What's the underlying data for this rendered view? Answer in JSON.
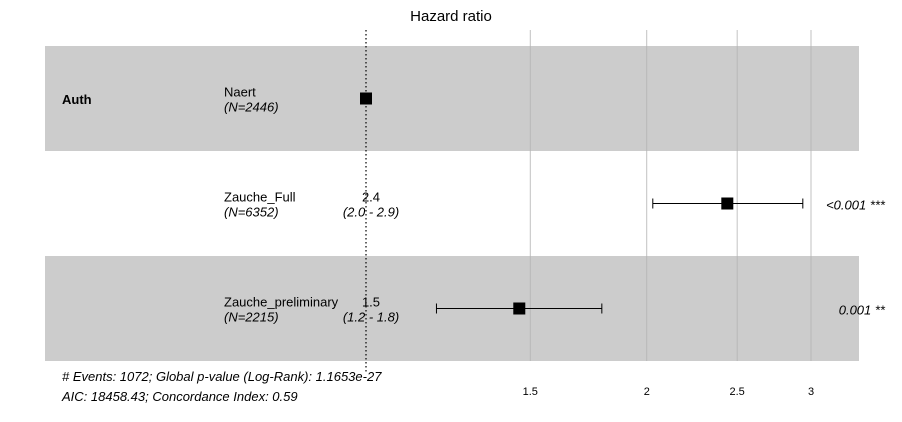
{
  "chart_data": {
    "type": "forest",
    "title": "Hazard ratio",
    "variable": "Auth",
    "scale": "log",
    "reference_value": 1,
    "x_ticks": [
      1.5,
      2,
      2.5,
      3
    ],
    "x_tick_labels": [
      "1.5",
      "2",
      "2.5",
      "3"
    ],
    "rows": [
      {
        "level": "Naert",
        "n_label": "(N=2446)",
        "hr": 1,
        "hr_label": "",
        "ci_low": null,
        "ci_high": null,
        "ci_label": "",
        "p_label": "",
        "shaded": true
      },
      {
        "level": "Zauche_Full",
        "n_label": "(N=6352)",
        "hr": 2.44,
        "hr_label": "2.4",
        "ci_low": 2.03,
        "ci_high": 2.94,
        "ci_label": "(2.0 - 2.9)",
        "p_label": "<0.001 ***",
        "shaded": false
      },
      {
        "level": "Zauche_preliminary",
        "n_label": "(N=2215)",
        "hr": 1.46,
        "hr_label": "1.5",
        "ci_low": 1.19,
        "ci_high": 1.79,
        "ci_label": "(1.2 - 1.8)",
        "p_label": "0.001 **",
        "shaded": true
      }
    ],
    "footnote_lines": [
      "# Events: 1072; Global p-value (Log-Rank): 1.1653e-27",
      "AIC: 18458.43; Concordance Index: 0.59"
    ],
    "colors": {
      "shade": "#cccccc",
      "grid": "#b3b3b3",
      "marker": "#000000"
    }
  }
}
